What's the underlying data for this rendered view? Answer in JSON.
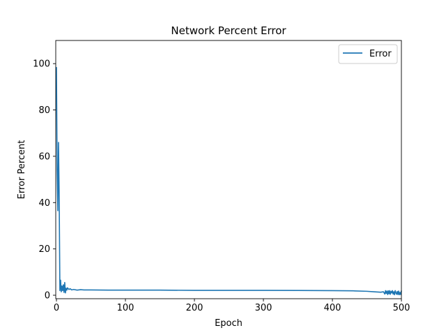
{
  "chart_data": {
    "type": "line",
    "title": "Network Percent Error",
    "xlabel": "Epoch",
    "ylabel": "Error Percent",
    "xlim": [
      -1,
      500
    ],
    "ylim": [
      -1.5,
      110
    ],
    "xticks": [
      0,
      100,
      200,
      300,
      400,
      500
    ],
    "yticks": [
      0,
      20,
      40,
      60,
      80,
      100
    ],
    "grid": false,
    "legend": {
      "position": "top-right"
    },
    "series": [
      {
        "name": "Error",
        "color": "#1f77b4",
        "x": [
          0,
          1,
          2,
          3,
          4,
          5,
          6,
          7,
          8,
          9,
          10,
          11,
          12,
          13,
          14,
          15,
          16,
          18,
          20,
          22,
          25,
          30,
          35,
          40,
          50,
          75,
          100,
          150,
          200,
          250,
          300,
          350,
          400,
          430,
          450,
          460,
          470,
          474,
          476,
          477,
          478,
          479,
          480,
          481,
          482,
          483,
          484,
          485,
          486,
          487,
          488,
          489,
          490,
          491,
          492,
          493,
          494,
          495,
          496,
          497,
          498,
          499,
          500
        ],
        "y": [
          98.5,
          54,
          36.5,
          66,
          42,
          2,
          6.5,
          1.5,
          4,
          2,
          4.5,
          1.2,
          5.5,
          1,
          3,
          2.2,
          3.2,
          2.5,
          2.8,
          2.3,
          2.5,
          2.2,
          2.4,
          2.3,
          2.3,
          2.2,
          2.2,
          2.2,
          2.1,
          2.1,
          2.1,
          2.05,
          2.0,
          1.9,
          1.7,
          1.5,
          1.3,
          1.5,
          0.5,
          2.0,
          0.8,
          1.8,
          0.3,
          1.9,
          0.6,
          2.0,
          0.4,
          1.7,
          1.0,
          2.0,
          0.5,
          1.5,
          0.2,
          2.0,
          1.0,
          0.4,
          1.6,
          0.3,
          1.8,
          0.2,
          1.2,
          0.3,
          2.0
        ]
      }
    ]
  }
}
